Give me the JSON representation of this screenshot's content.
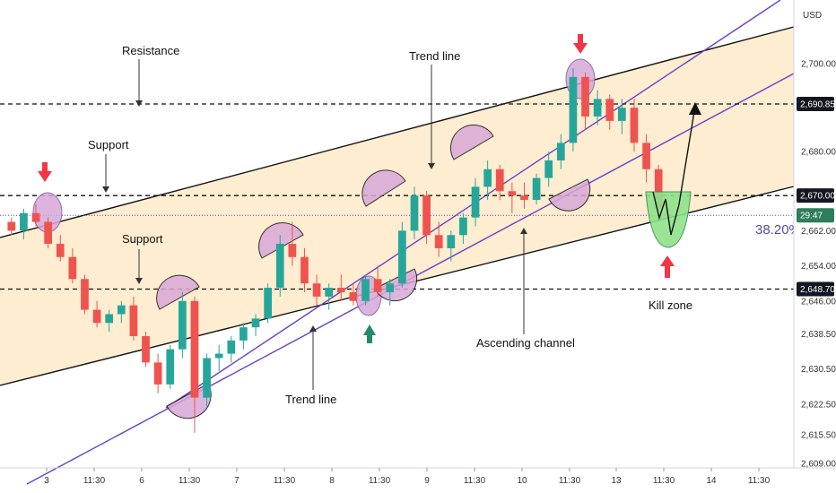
{
  "chart_data": {
    "type": "candlestick",
    "currency": "USD",
    "x_tick_labels": [
      "3",
      "11:30",
      "6",
      "11:30",
      "7",
      "11:30",
      "8",
      "11:30",
      "9",
      "11:30",
      "10",
      "11:30",
      "13",
      "11:30",
      "14",
      "11:30"
    ],
    "y_tick_labels": [
      "2,700.00",
      "2,680.00",
      "2,662.00",
      "2,654.00",
      "2,646.00",
      "2,638.50",
      "2,630.50",
      "2,622.50",
      "2,615.50",
      "2,609.00"
    ],
    "y_tick_values": [
      2700,
      2680,
      2662,
      2654,
      2646,
      2638.5,
      2630.5,
      2622.5,
      2615.5,
      2609
    ],
    "price_tags": [
      {
        "label": "2,690.85",
        "value": 2690.85,
        "bg": "#131722",
        "fg": "#ffffff"
      },
      {
        "label": "2,670.00",
        "value": 2670,
        "bg": "#131722",
        "fg": "#ffffff"
      },
      {
        "label": "29:47",
        "value": 2665.5,
        "bg": "#2e7d5b",
        "fg": "#ffffff"
      },
      {
        "label": "2,648.70",
        "value": 2648.7,
        "bg": "#131722",
        "fg": "#ffffff"
      }
    ],
    "horizontal_levels": [
      2690.85,
      2670,
      2648.7
    ],
    "current_price_level": 2665.5,
    "fib_label": "38.20%",
    "annotations": [
      "Resistance",
      "Trend line",
      "Support",
      "Support",
      "Trend line",
      "Ascending channel",
      "Kill zone"
    ],
    "colors": {
      "up": "#26a69a",
      "down": "#ef5350",
      "channel_fill": "#fde7c0",
      "trendline": "#6a3fc9",
      "resistance": "#111111",
      "kill_zone": "#8ee28a",
      "circle": "#d8a8d8",
      "arrow_red": "#f23645",
      "arrow_green": "#1f8a70",
      "fib_text": "#5b4ba8"
    },
    "series": [
      {
        "type": "candles",
        "values": [
          [
            2664,
            2665,
            2661,
            2662
          ],
          [
            2662,
            2667,
            2660,
            2666
          ],
          [
            2666,
            2668,
            2663,
            2664
          ],
          [
            2664,
            2665,
            2658,
            2659
          ],
          [
            2659,
            2661,
            2655,
            2656
          ],
          [
            2656,
            2658,
            2650,
            2651
          ],
          [
            2651,
            2652,
            2643,
            2644
          ],
          [
            2644,
            2646,
            2640,
            2641
          ],
          [
            2641,
            2644,
            2639,
            2643
          ],
          [
            2643,
            2646,
            2641,
            2645
          ],
          [
            2645,
            2647,
            2637,
            2638
          ],
          [
            2638,
            2639,
            2631,
            2632
          ],
          [
            2632,
            2634,
            2625,
            2627
          ],
          [
            2627,
            2636,
            2626,
            2635
          ],
          [
            2635,
            2648,
            2633,
            2646
          ],
          [
            2646,
            2647,
            2616,
            2624
          ],
          [
            2624,
            2634,
            2622,
            2633
          ],
          [
            2633,
            2636,
            2630,
            2634
          ],
          [
            2634,
            2638,
            2632,
            2637
          ],
          [
            2637,
            2641,
            2635,
            2640
          ],
          [
            2640,
            2643,
            2638,
            2642
          ],
          [
            2642,
            2650,
            2641,
            2649
          ],
          [
            2649,
            2661,
            2647,
            2659
          ],
          [
            2659,
            2664,
            2654,
            2656
          ],
          [
            2656,
            2658,
            2648,
            2650
          ],
          [
            2650,
            2652,
            2645,
            2647
          ],
          [
            2647,
            2650,
            2644,
            2649
          ],
          [
            2649,
            2652,
            2646,
            2648
          ],
          [
            2648,
            2650,
            2645,
            2646
          ],
          [
            2646,
            2652,
            2645,
            2651
          ],
          [
            2651,
            2654,
            2647,
            2648
          ],
          [
            2648,
            2651,
            2645,
            2650
          ],
          [
            2650,
            2664,
            2649,
            2662
          ],
          [
            2662,
            2672,
            2660,
            2670
          ],
          [
            2670,
            2671,
            2659,
            2661
          ],
          [
            2661,
            2664,
            2656,
            2658
          ],
          [
            2658,
            2662,
            2655,
            2661
          ],
          [
            2661,
            2666,
            2659,
            2665
          ],
          [
            2665,
            2674,
            2663,
            2672
          ],
          [
            2672,
            2678,
            2669,
            2676
          ],
          [
            2676,
            2677,
            2669,
            2671
          ],
          [
            2671,
            2673,
            2666,
            2670
          ],
          [
            2670,
            2673,
            2667,
            2669
          ],
          [
            2669,
            2675,
            2668,
            2674
          ],
          [
            2674,
            2680,
            2672,
            2678
          ],
          [
            2678,
            2684,
            2676,
            2682
          ],
          [
            2682,
            2699,
            2680,
            2697
          ],
          [
            2697,
            2698,
            2685,
            2688
          ],
          [
            2688,
            2694,
            2686,
            2692
          ],
          [
            2692,
            2693,
            2685,
            2687
          ],
          [
            2687,
            2692,
            2684,
            2690
          ],
          [
            2690,
            2692,
            2680,
            2682
          ],
          [
            2682,
            2684,
            2673,
            2676
          ],
          [
            2676,
            2677,
            2665,
            2667
          ]
        ]
      }
    ]
  },
  "axis": {
    "currency_label": "USD"
  }
}
